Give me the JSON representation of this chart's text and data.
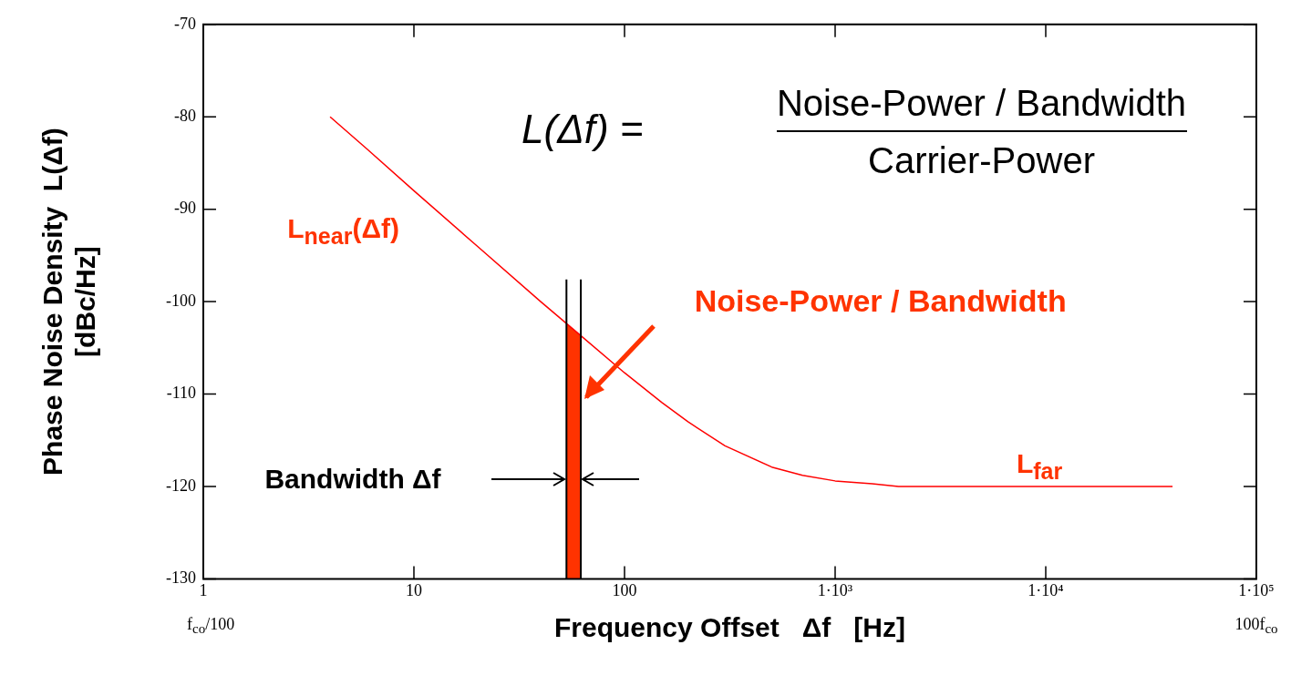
{
  "chart_data": {
    "type": "line",
    "xlabel": "Frequency Offset   Δf   [Hz]",
    "ylabel": "Phase Noise Density  L(Δf)\n[dBc/Hz]",
    "x": [
      4,
      6,
      10,
      20,
      40,
      60,
      100,
      150,
      200,
      300,
      500,
      700,
      1000,
      1500,
      2000,
      5000,
      10000,
      40000
    ],
    "series": [
      {
        "color": "#ff0000",
        "values": [
          -80,
          -83.5,
          -88,
          -94,
          -100,
          -103.4,
          -107.7,
          -110.9,
          -113,
          -115.6,
          -117.9,
          -118.8,
          -119.4,
          -119.7,
          -120,
          -120,
          -120,
          -120
        ]
      }
    ],
    "log": "x",
    "xlim": [
      1,
      100000
    ],
    "ylim": [
      -130,
      -70
    ],
    "xticks": [
      1,
      10,
      100,
      {
        "value": 1000,
        "label": "1·10³"
      },
      {
        "value": 10000,
        "label": "1·10⁴"
      },
      {
        "value": 100000,
        "label": "1·10⁵"
      }
    ],
    "yticks": [
      -130,
      -120,
      -110,
      -100,
      -90,
      -80,
      -70
    ],
    "grid": false,
    "legend": false,
    "marker": "none",
    "line_style": "solid",
    "bands": [
      {
        "axis": "x",
        "from": 53,
        "to": 62,
        "color": "#ff3300"
      }
    ],
    "ref_lines": [
      {
        "axis": "x",
        "value": 53,
        "color": "#000000"
      },
      {
        "axis": "x",
        "value": 62,
        "color": "#000000"
      }
    ],
    "annotations": [
      "L(Δf) =",
      "Noise-Power / Bandwidth",
      "Carrier-Power",
      "L$_{near}$(Δf)",
      "Noise-Power / Bandwidth",
      "Bandwidth Δf",
      "L$_{far}$",
      "f$_{co}$/100",
      "100f$_{co}$"
    ]
  }
}
